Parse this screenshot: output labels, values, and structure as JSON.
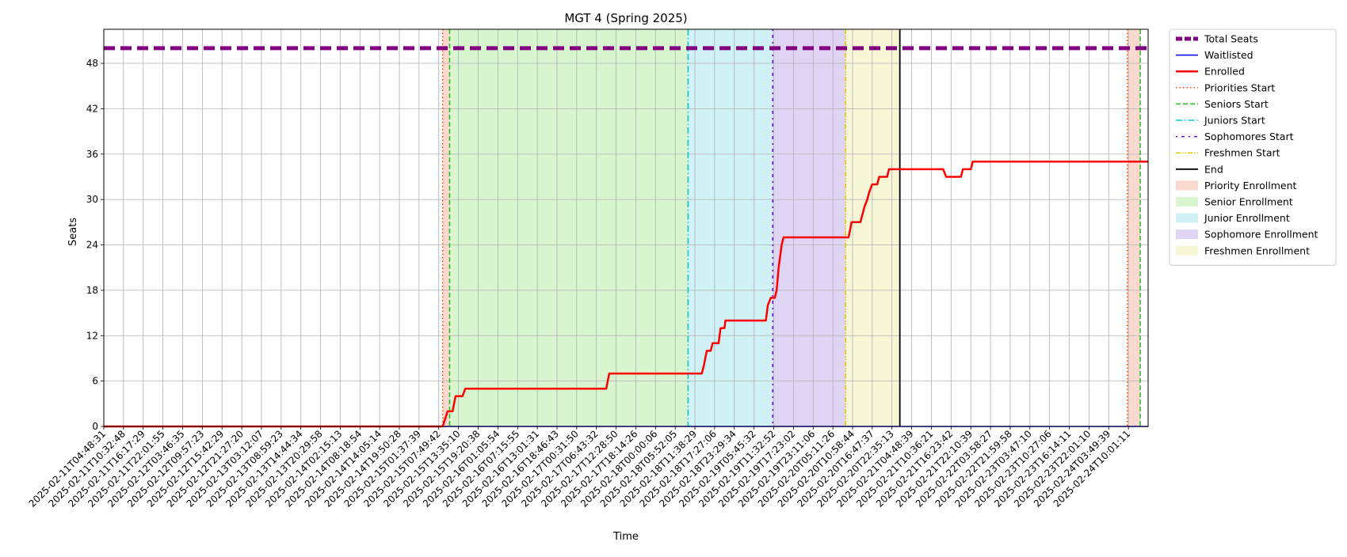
{
  "chart_data": {
    "type": "line",
    "title": "MGT 4 (Spring 2025)",
    "xlabel": "Time",
    "ylabel": "Seats",
    "ylim": [
      0,
      52.5
    ],
    "yticks": [
      0,
      6,
      12,
      18,
      24,
      30,
      36,
      42,
      48
    ],
    "grid": true,
    "legend_position": "outside right",
    "x_tick_labels": [
      "2025-02-11T04:48:31",
      "2025-02-11T10:32:48",
      "2025-02-11T16:17:29",
      "2025-02-11T22:01:55",
      "2025-02-12T03:46:35",
      "2025-02-12T09:57:23",
      "2025-02-12T15:42:29",
      "2025-02-12T21:27:20",
      "2025-02-13T03:12:07",
      "2025-02-13T08:59:23",
      "2025-02-13T14:44:34",
      "2025-02-13T20:29:58",
      "2025-02-14T02:15:13",
      "2025-02-14T08:18:54",
      "2025-02-14T14:05:14",
      "2025-02-14T19:50:28",
      "2025-02-15T01:37:39",
      "2025-02-15T07:49:42",
      "2025-02-15T13:35:10",
      "2025-02-15T19:20:38",
      "2025-02-16T01:05:54",
      "2025-02-16T07:15:55",
      "2025-02-16T13:01:31",
      "2025-02-16T18:46:43",
      "2025-02-17T00:31:50",
      "2025-02-17T06:43:32",
      "2025-02-17T12:28:50",
      "2025-02-17T18:14:26",
      "2025-02-18T00:00:06",
      "2025-02-18T05:52:05",
      "2025-02-18T11:38:29",
      "2025-02-18T17:27:06",
      "2025-02-18T23:29:34",
      "2025-02-19T05:45:32",
      "2025-02-19T11:32:52",
      "2025-02-19T17:23:02",
      "2025-02-19T23:11:06",
      "2025-02-20T05:11:26",
      "2025-02-20T10:58:44",
      "2025-02-20T16:47:37",
      "2025-02-20T22:35:13",
      "2025-02-21T04:48:39",
      "2025-02-21T10:36:21",
      "2025-02-21T16:23:42",
      "2025-02-21T22:10:39",
      "2025-02-22T03:58:27",
      "2025-02-22T21:59:58",
      "2025-02-23T03:47:10",
      "2025-02-23T10:27:06",
      "2025-02-23T16:14:11",
      "2025-02-23T22:01:10",
      "2025-02-24T03:49:39",
      "2025-02-24T10:01:11"
    ],
    "series": [
      {
        "name": "Total Seats",
        "color": "#800080",
        "style": "dashed",
        "points": [
          [
            0,
            50
          ],
          [
            53,
            50
          ]
        ]
      },
      {
        "name": "Waitlisted",
        "color": "#0000ff",
        "style": "solid",
        "points": [
          [
            0,
            0
          ],
          [
            53,
            0
          ]
        ]
      },
      {
        "name": "Enrolled",
        "color": "#ff0000",
        "style": "solid",
        "points": [
          [
            0,
            0
          ],
          [
            17.2,
            0
          ],
          [
            17.45,
            2
          ],
          [
            17.7,
            2
          ],
          [
            17.85,
            4
          ],
          [
            18.2,
            4
          ],
          [
            18.35,
            5
          ],
          [
            25.5,
            5
          ],
          [
            25.65,
            7
          ],
          [
            30.35,
            7
          ],
          [
            30.45,
            8
          ],
          [
            30.6,
            10
          ],
          [
            30.8,
            10
          ],
          [
            30.9,
            11
          ],
          [
            31.2,
            11
          ],
          [
            31.3,
            13
          ],
          [
            31.5,
            13
          ],
          [
            31.55,
            14
          ],
          [
            33.6,
            14
          ],
          [
            33.7,
            16
          ],
          [
            33.85,
            17
          ],
          [
            34.05,
            17
          ],
          [
            34.15,
            18
          ],
          [
            34.25,
            21
          ],
          [
            34.4,
            24
          ],
          [
            34.5,
            25
          ],
          [
            37.8,
            25
          ],
          [
            37.95,
            27
          ],
          [
            38.4,
            27
          ],
          [
            38.5,
            28
          ],
          [
            38.6,
            29
          ],
          [
            38.75,
            30
          ],
          [
            38.85,
            31
          ],
          [
            39.0,
            32
          ],
          [
            39.25,
            32
          ],
          [
            39.35,
            33
          ],
          [
            39.75,
            33
          ],
          [
            39.85,
            34
          ],
          [
            42.6,
            34
          ],
          [
            42.75,
            33
          ],
          [
            43.5,
            33
          ],
          [
            43.6,
            34
          ],
          [
            44.0,
            34
          ],
          [
            44.1,
            35
          ],
          [
            53,
            35
          ]
        ]
      }
    ],
    "markers": [
      {
        "name": "Priorities Start",
        "color": "#ff4500",
        "style": "dotted",
        "x": 17.2
      },
      {
        "name": "Seniors Start",
        "color": "#22bb22",
        "style": "dashed",
        "x": 17.55
      },
      {
        "name": "Juniors Start",
        "color": "#00c8c8",
        "style": "dashdot",
        "x": 29.65
      },
      {
        "name": "Sophomores Start",
        "color": "#6600ee",
        "style": "loosedashdot",
        "x": 33.95
      },
      {
        "name": "Freshmen Start",
        "color": "#e3c800",
        "style": "dashdotdot",
        "x": 37.65
      },
      {
        "name": "End",
        "color": "#000000",
        "style": "solid",
        "x": 40.4
      },
      {
        "name": "Priorities Start",
        "color": "#ff4500",
        "style": "dotted",
        "x": 51.95
      },
      {
        "name": "Seniors Start",
        "color": "#22bb22",
        "style": "dashed",
        "x": 52.6
      }
    ],
    "spans": [
      {
        "name": "Priority Enrollment",
        "color": "#f6b59e",
        "from": 17.2,
        "to": 17.55
      },
      {
        "name": "Senior Enrollment",
        "color": "#b2ec9f",
        "from": 17.55,
        "to": 29.65
      },
      {
        "name": "Junior Enrollment",
        "color": "#a2e3ec",
        "from": 29.65,
        "to": 33.95
      },
      {
        "name": "Sophomore Enrollment",
        "color": "#c1a9ec",
        "from": 33.95,
        "to": 37.65
      },
      {
        "name": "Freshmen Enrollment",
        "color": "#efefb2",
        "from": 37.65,
        "to": 40.4
      },
      {
        "name": "Priority Enrollment",
        "color": "#f6b59e",
        "from": 51.95,
        "to": 52.6
      }
    ],
    "legend": [
      {
        "label": "Total Seats",
        "kind": "line",
        "color": "#800080",
        "style": "dashed",
        "width": 5
      },
      {
        "label": "Waitlisted",
        "kind": "line",
        "color": "#0000ff",
        "style": "solid",
        "width": 1.5
      },
      {
        "label": "Enrolled",
        "kind": "line",
        "color": "#ff0000",
        "style": "solid",
        "width": 2.5
      },
      {
        "label": "Priorities Start",
        "kind": "line",
        "color": "#ff4500",
        "style": "dotted",
        "width": 1.5
      },
      {
        "label": "Seniors Start",
        "kind": "line",
        "color": "#22bb22",
        "style": "dashed",
        "width": 1.5
      },
      {
        "label": "Juniors Start",
        "kind": "line",
        "color": "#00c8c8",
        "style": "dashdot",
        "width": 1.5
      },
      {
        "label": "Sophomores Start",
        "kind": "line",
        "color": "#6600ee",
        "style": "loosedashdot",
        "width": 1.5
      },
      {
        "label": "Freshmen Start",
        "kind": "line",
        "color": "#e3c800",
        "style": "dashdotdot",
        "width": 1.5
      },
      {
        "label": "End",
        "kind": "line",
        "color": "#000000",
        "style": "solid",
        "width": 1.8
      },
      {
        "label": "Priority Enrollment",
        "kind": "patch",
        "color": "#f6b59e"
      },
      {
        "label": "Senior Enrollment",
        "kind": "patch",
        "color": "#b2ec9f"
      },
      {
        "label": "Junior Enrollment",
        "kind": "patch",
        "color": "#a2e3ec"
      },
      {
        "label": "Sophomore Enrollment",
        "kind": "patch",
        "color": "#c1a9ec"
      },
      {
        "label": "Freshmen Enrollment",
        "kind": "patch",
        "color": "#efefb2"
      }
    ]
  }
}
